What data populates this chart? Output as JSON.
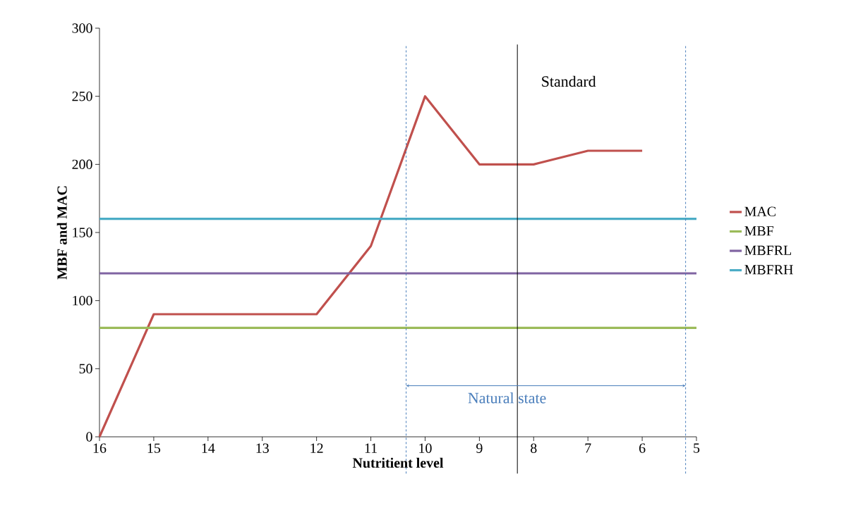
{
  "chart_data": {
    "type": "line",
    "xlabel": "Nutritient level",
    "ylabel": "MBF and MAC",
    "xlim": [
      16,
      5
    ],
    "xticks": [
      16,
      15,
      14,
      13,
      12,
      11,
      10,
      9,
      8,
      7,
      6,
      5
    ],
    "ylim": [
      0,
      300
    ],
    "yticks": [
      0,
      50,
      100,
      150,
      200,
      250,
      300
    ],
    "series": [
      {
        "name": "MAC",
        "color": "#c0504d",
        "x": [
          16,
          15,
          14,
          13,
          12,
          11,
          10,
          9,
          8,
          7,
          6
        ],
        "values": [
          0,
          90,
          90,
          90,
          90,
          140,
          250,
          200,
          200,
          210,
          210
        ]
      },
      {
        "name": "MBF",
        "color": "#9bbb59",
        "x": [
          16,
          5
        ],
        "values": [
          80,
          80
        ]
      },
      {
        "name": "MBFRL",
        "color": "#8064a2",
        "x": [
          16,
          5
        ],
        "values": [
          120,
          120
        ]
      },
      {
        "name": "MBFRH",
        "color": "#4bacc6",
        "x": [
          16,
          5
        ],
        "values": [
          160,
          160
        ]
      }
    ],
    "ref_lines": [
      {
        "axis": "x",
        "value": 10.35,
        "line_style": "dashed",
        "color": "#4a7ebb"
      },
      {
        "axis": "x",
        "value": 5.2,
        "line_style": "dashed",
        "color": "#4a7ebb"
      },
      {
        "axis": "x",
        "value": 8.3,
        "label": "Standard",
        "color": "#000000"
      }
    ],
    "annotations": [
      "Natural state"
    ],
    "legend": "right",
    "grid": false,
    "marker": "none",
    "line_style": "solid"
  }
}
